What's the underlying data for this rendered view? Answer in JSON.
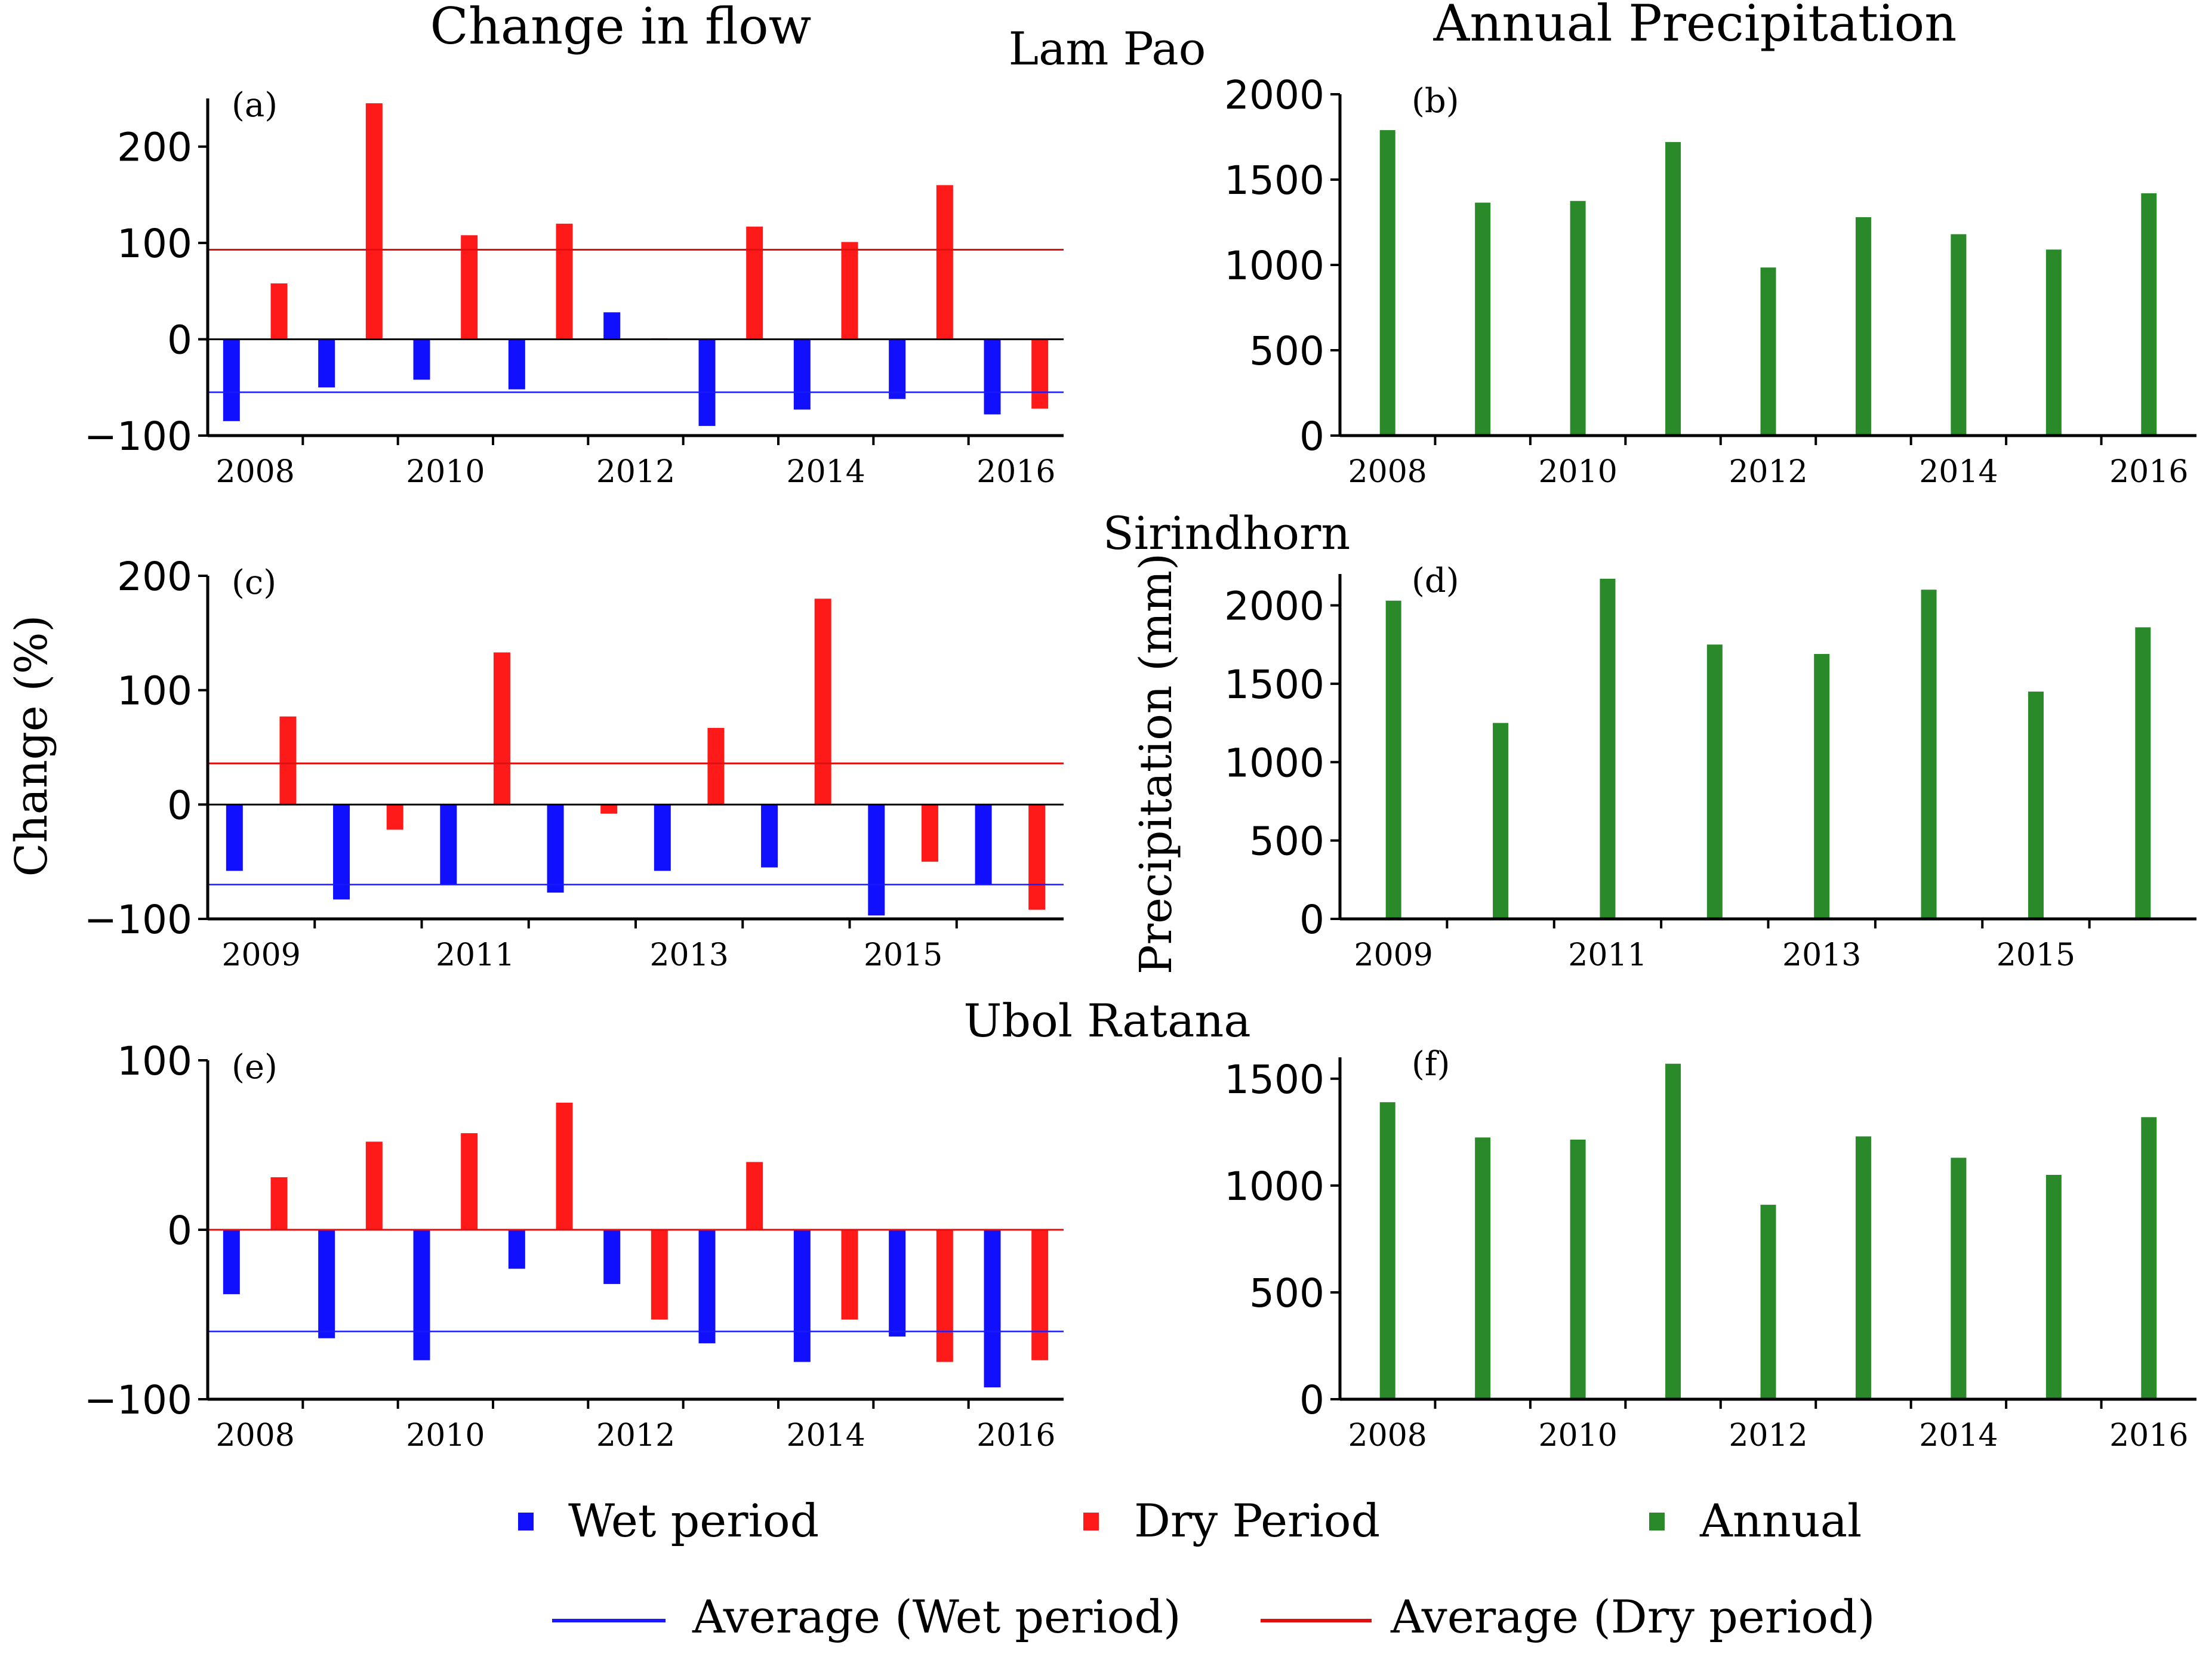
{
  "headers": {
    "left": "Change in flow",
    "right": "Annual Precipitation"
  },
  "y_axis_labels": {
    "left": "Change (%)",
    "right": "Precipitation (mm)"
  },
  "colors": {
    "wet": "#1010ff",
    "dry": "#ff1a1a",
    "annual": "#2a8a2a",
    "wet_avg": "#1a1aff",
    "dry_avg": "#e01010"
  },
  "legend": {
    "wet": "Wet period",
    "dry": "Dry Period",
    "annual": "Annual",
    "wet_avg": "Average (Wet period)",
    "dry_avg": "Average (Dry period)"
  },
  "chart_data": [
    {
      "id": "a",
      "panel_label": "(a)",
      "station": "Lam Pao",
      "type": "bar",
      "kind": "flow",
      "years": [
        2008,
        2009,
        2010,
        2011,
        2012,
        2013,
        2014,
        2015,
        2016
      ],
      "x_ticks": [
        2008,
        2010,
        2012,
        2014,
        2016
      ],
      "ylim": [
        -100,
        250
      ],
      "y_ticks": [
        -100,
        0,
        100,
        200
      ],
      "series": [
        {
          "name": "Wet period",
          "values": [
            -85,
            -50,
            -42,
            -52,
            28,
            -90,
            -73,
            -62,
            -78
          ]
        },
        {
          "name": "Dry Period",
          "values": [
            58,
            245,
            108,
            120,
            1,
            117,
            101,
            160,
            -72
          ]
        }
      ],
      "avg_wet": -55,
      "avg_dry": 93
    },
    {
      "id": "b",
      "panel_label": "(b)",
      "station": "Lam Pao",
      "type": "bar",
      "kind": "precip",
      "years": [
        2008,
        2009,
        2010,
        2011,
        2012,
        2013,
        2014,
        2015,
        2016
      ],
      "x_ticks": [
        2008,
        2010,
        2012,
        2014,
        2016
      ],
      "ylim": [
        0,
        2000
      ],
      "y_ticks": [
        0,
        500,
        1000,
        1500,
        2000
      ],
      "series": [
        {
          "name": "Annual",
          "values": [
            1790,
            1365,
            1375,
            1720,
            985,
            1280,
            1180,
            1090,
            1420
          ]
        }
      ]
    },
    {
      "id": "c",
      "panel_label": "(c)",
      "station": "Sirindhorn",
      "type": "bar",
      "kind": "flow",
      "years": [
        2009,
        2010,
        2011,
        2012,
        2013,
        2014,
        2015,
        2016
      ],
      "x_ticks": [
        2009,
        2011,
        2013,
        2015
      ],
      "ylim": [
        -100,
        200
      ],
      "y_ticks": [
        -100,
        0,
        100,
        200
      ],
      "series": [
        {
          "name": "Wet period",
          "values": [
            -58,
            -83,
            -70,
            -77,
            -58,
            -55,
            -97,
            -70
          ]
        },
        {
          "name": "Dry Period",
          "values": [
            77,
            -22,
            133,
            -8,
            67,
            180,
            -50,
            -92
          ]
        }
      ],
      "avg_wet": -70,
      "avg_dry": 36
    },
    {
      "id": "d",
      "panel_label": "(d)",
      "station": "Sirindhorn",
      "type": "bar",
      "kind": "precip",
      "years": [
        2009,
        2010,
        2011,
        2012,
        2013,
        2014,
        2015,
        2016
      ],
      "x_ticks": [
        2009,
        2011,
        2013,
        2015
      ],
      "ylim": [
        0,
        2200
      ],
      "y_ticks": [
        0,
        500,
        1000,
        1500,
        2000
      ],
      "series": [
        {
          "name": "Annual",
          "values": [
            2030,
            1250,
            2170,
            1750,
            1690,
            2100,
            1450,
            1860
          ]
        }
      ]
    },
    {
      "id": "e",
      "panel_label": "(e)",
      "station": "Ubol Ratana",
      "type": "bar",
      "kind": "flow",
      "years": [
        2008,
        2009,
        2010,
        2011,
        2012,
        2013,
        2014,
        2015,
        2016
      ],
      "x_ticks": [
        2008,
        2010,
        2012,
        2014,
        2016
      ],
      "ylim": [
        -100,
        100
      ],
      "y_ticks": [
        -100,
        0,
        100
      ],
      "series": [
        {
          "name": "Wet period",
          "values": [
            -38,
            -64,
            -77,
            -23,
            -32,
            -67,
            -78,
            -63,
            -93
          ]
        },
        {
          "name": "Dry Period",
          "values": [
            31,
            52,
            57,
            75,
            -53,
            40,
            -53,
            -78,
            -77
          ]
        }
      ],
      "avg_wet": -60,
      "avg_dry": 0
    },
    {
      "id": "f",
      "panel_label": "(f)",
      "station": "Ubol Ratana",
      "type": "bar",
      "kind": "precip",
      "years": [
        2008,
        2009,
        2010,
        2011,
        2012,
        2013,
        2014,
        2015,
        2016
      ],
      "x_ticks": [
        2008,
        2010,
        2012,
        2014,
        2016
      ],
      "ylim": [
        0,
        1600
      ],
      "y_ticks": [
        0,
        500,
        1000,
        1500
      ],
      "series": [
        {
          "name": "Annual",
          "values": [
            1390,
            1225,
            1215,
            1570,
            910,
            1230,
            1130,
            1050,
            1320
          ]
        }
      ]
    }
  ]
}
